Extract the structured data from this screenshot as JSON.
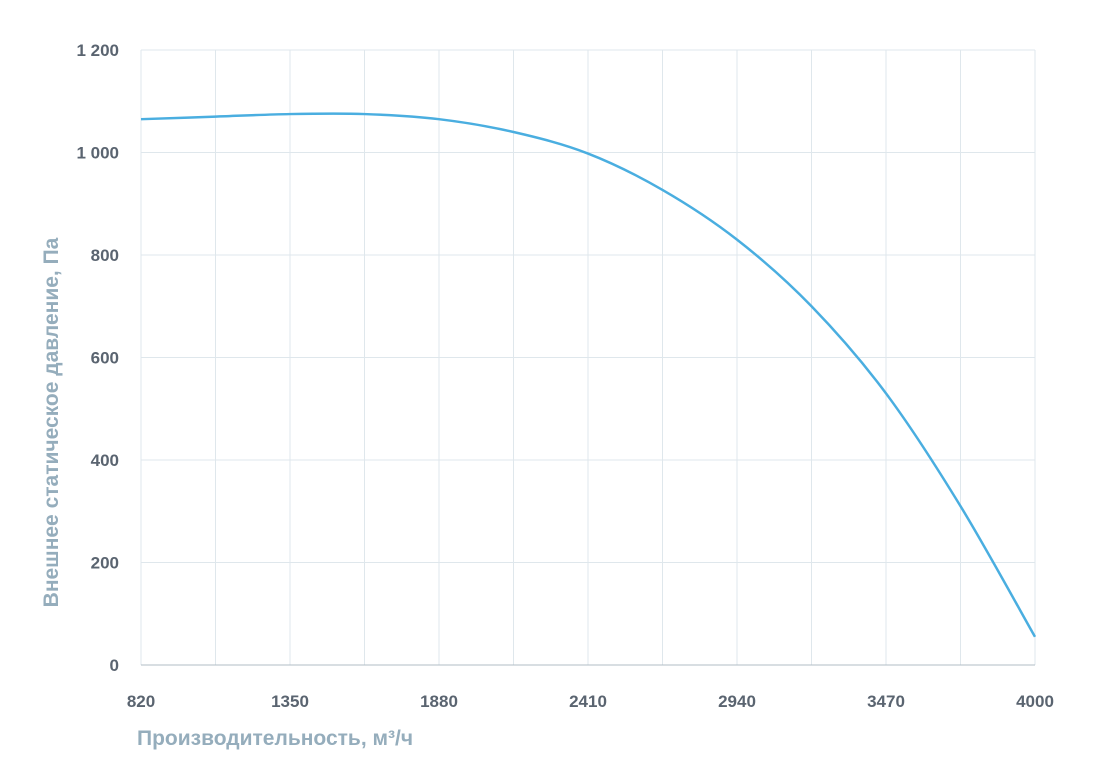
{
  "chart_data": {
    "type": "line",
    "title": "",
    "xlabel": "Производительность, м³/ч",
    "ylabel": "Внешнее статическое давление, Па",
    "xlim": [
      820,
      4000
    ],
    "ylim": [
      0,
      1200
    ],
    "x_ticks": [
      820,
      1350,
      1880,
      2410,
      2940,
      3470,
      4000
    ],
    "x_tick_labels": [
      "820",
      "1350",
      "1880",
      "2410",
      "2940",
      "3470",
      "4000"
    ],
    "x_minor_gridlines": [
      1085,
      1615,
      2145,
      2675,
      3205,
      3735
    ],
    "y_ticks": [
      0,
      200,
      400,
      600,
      800,
      1000,
      1200
    ],
    "y_tick_labels": [
      "0",
      "200",
      "400",
      "600",
      "800",
      "1 000",
      "1 200"
    ],
    "grid": true,
    "legend": "none",
    "series": [
      {
        "color": "#4aaee0",
        "x": [
          820,
          1085,
          1350,
          1615,
          1880,
          2145,
          2410,
          2675,
          2940,
          3205,
          3470,
          3735,
          4000
        ],
        "y": [
          1065,
          1070,
          1075,
          1075,
          1065,
          1040,
          998,
          927,
          830,
          700,
          530,
          310,
          55
        ]
      }
    ]
  }
}
